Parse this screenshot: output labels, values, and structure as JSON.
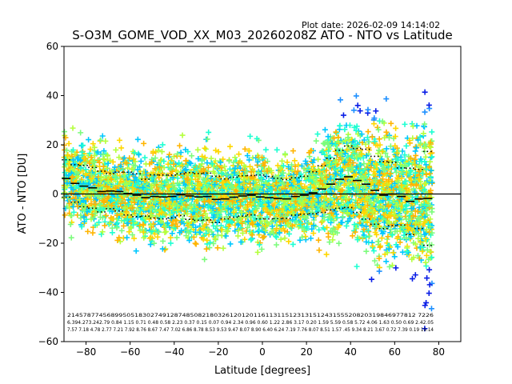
{
  "plot_date": "Plot date: 2026-02-09 14:14:02",
  "chart_data": {
    "type": "scatter",
    "title": "S-O3M_GOME_VOD_XX_M03_20260208Z ATO - NTO vs Latitude",
    "xlabel": "Latitude [degrees]",
    "ylabel": "ATO - NTO [DU]",
    "xlim": [
      -90,
      90
    ],
    "ylim": [
      -60,
      60
    ],
    "xticks": [
      -80,
      -60,
      -40,
      -20,
      0,
      20,
      40,
      60,
      80
    ],
    "yticks": [
      -60,
      -40,
      -20,
      0,
      20,
      40,
      60
    ],
    "zero_line": 0,
    "grid": false,
    "marker": "+",
    "colors": [
      "#0a1ee6",
      "#1e90ff",
      "#00c8ff",
      "#1effd2",
      "#7cfc7c",
      "#b4ff3c",
      "#ffd700",
      "#ffb400"
    ],
    "bins": [
      {
        "lat": -89,
        "mean": 6.3,
        "std": 7.6,
        "n": 214
      },
      {
        "lat": -85,
        "mean": 4.3,
        "std": 7.6,
        "n": 578
      },
      {
        "lat": -81,
        "mean": 3.2,
        "std": 8.4,
        "n": 745
      },
      {
        "lat": -77,
        "mean": 2.5,
        "std": 8.3,
        "n": 689
      },
      {
        "lat": -73,
        "mean": 1.0,
        "std": 8.3,
        "n": 950
      },
      {
        "lat": -69,
        "mean": 1.2,
        "std": 7.2,
        "n": 518
      },
      {
        "lat": -65,
        "mean": 1.0,
        "std": 7.9,
        "n": 302
      },
      {
        "lat": -61,
        "mean": 0.2,
        "std": 8.7,
        "n": 749
      },
      {
        "lat": -57,
        "mean": -0.5,
        "std": 8.7,
        "n": 912
      },
      {
        "lat": -53,
        "mean": -1.5,
        "std": 7.5,
        "n": 874
      },
      {
        "lat": -49,
        "mean": -1.0,
        "std": 8.8,
        "n": 850
      },
      {
        "lat": -45,
        "mean": -1.2,
        "std": 8.9,
        "n": 821
      },
      {
        "lat": -41,
        "mean": -1.0,
        "std": 8.7,
        "n": 800
      },
      {
        "lat": -37,
        "mean": -0.3,
        "std": 8.5,
        "n": 203
      },
      {
        "lat": -33,
        "mean": -0.8,
        "std": 9.5,
        "n": 612
      },
      {
        "lat": -29,
        "mean": -1.2,
        "std": 9.5,
        "n": 612
      },
      {
        "lat": -25,
        "mean": -1.0,
        "std": 9.5,
        "n": 611
      },
      {
        "lat": -21,
        "mean": -2.2,
        "std": 9.4,
        "n": 611
      },
      {
        "lat": -17,
        "mean": -2.0,
        "std": 8.1,
        "n": 611
      },
      {
        "lat": -13,
        "mean": -1.3,
        "std": 8.1,
        "n": 611
      },
      {
        "lat": -9,
        "mean": -0.8,
        "std": 8.2,
        "n": 511
      },
      {
        "lat": -5,
        "mean": -0.5,
        "std": 8.0,
        "n": 611
      },
      {
        "lat": -1,
        "mean": -1.2,
        "std": 8.9,
        "n": 611
      },
      {
        "lat": 3,
        "mean": -1.5,
        "std": 8.6,
        "n": 611
      },
      {
        "lat": 7,
        "mean": -1.8,
        "std": 8.2,
        "n": 611
      },
      {
        "lat": 11,
        "mean": -2.0,
        "std": 7.9,
        "n": 611
      },
      {
        "lat": 15,
        "mean": -1.0,
        "std": 7.6,
        "n": 612
      },
      {
        "lat": 19,
        "mean": -0.5,
        "std": 7.7,
        "n": 613
      },
      {
        "lat": 23,
        "mean": 0.5,
        "std": 8.5,
        "n": 514
      },
      {
        "lat": 27,
        "mean": 2.0,
        "std": 9.5,
        "n": 313
      },
      {
        "lat": 31,
        "mean": 4.0,
        "std": 10.5,
        "n": 515
      },
      {
        "lat": 35,
        "mean": 6.0,
        "std": 11.8,
        "n": 315
      },
      {
        "lat": 39,
        "mean": 7.0,
        "std": 12.5,
        "n": 515
      },
      {
        "lat": 43,
        "mean": 5.5,
        "std": 13.0,
        "n": 520
      },
      {
        "lat": 47,
        "mean": 4.0,
        "std": 14.2,
        "n": 717
      },
      {
        "lat": 51,
        "mean": 1.5,
        "std": 13.8,
        "n": 319
      },
      {
        "lat": 55,
        "mean": -0.5,
        "std": 13.6,
        "n": 939
      },
      {
        "lat": 59,
        "mean": 0.0,
        "std": 12.9,
        "n": 661
      },
      {
        "lat": 63,
        "mean": -1.0,
        "std": 11.6,
        "n": 726
      },
      {
        "lat": 67,
        "mean": -3.0,
        "std": 13.5,
        "n": 772
      },
      {
        "lat": 71,
        "mean": -2.0,
        "std": 12.0,
        "n": 812
      },
      {
        "lat": 75,
        "mean": -1.8,
        "std": 19.1,
        "n": 226
      }
    ],
    "bin_stat_rows": [
      "2145787745689950518302749128748508218032612012011611311512313151243155520820319846977812 7226",
      "6.394.273.242.79 0.84 1.15 0.71 0.48 0.58 2.23 0.37 0.15 0.07 0.94 2.34 0.96 0.60 1.22 2.86 3.17 0.20 1.59 5.59 0.58 5.72 4.06 1.63 0.50 0.69 2.42.05",
      "7.57 7.18 4.78 2.77 7.21 7.92 8.76 8.67 7.47 7.02 6.86 8.78 8.53 9.53 9.47 8.07 8.90 6.40 6.24 7.19 7.76 8.07 8.51 1.57 .45 9.34 8.21 3.67 0.72 7.39 0.19 19.14"
    ]
  }
}
